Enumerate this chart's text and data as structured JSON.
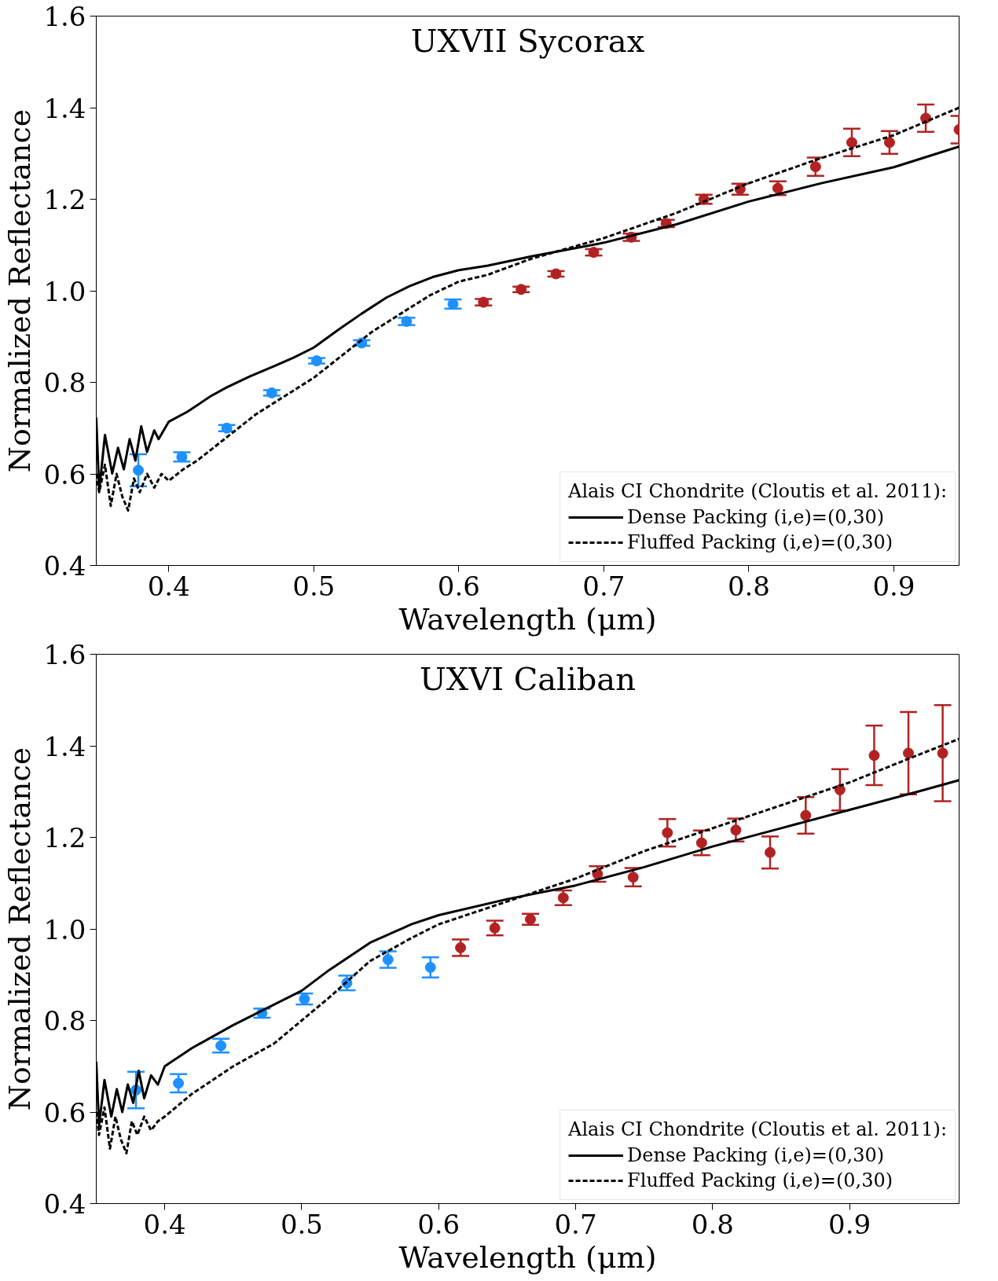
{
  "chart_data": [
    {
      "type": "scatter",
      "title": "UXVII Sycorax",
      "xlabel": "Wavelength (μm)",
      "ylabel": "Normalized Reflectance",
      "legend_title": "Alais CI Chondrite (Cloutis et al. 2011):",
      "legend": "bottom right",
      "grid": false,
      "xlim": [
        0.35,
        0.945
      ],
      "xticks": [
        0.4,
        0.5,
        0.6,
        0.7,
        0.8,
        0.9
      ],
      "ylim": [
        0.4,
        1.6
      ],
      "yticks": [
        0.4,
        0.6,
        0.8,
        {
          "value": 1,
          "label": "1.0"
        },
        1.2,
        1.4,
        1.6
      ],
      "series": [
        {
          "marker": "circle",
          "color": "#1e90ff",
          "x": [
            0.379,
            0.409,
            0.44,
            0.471,
            0.502,
            0.533,
            0.564,
            0.596
          ],
          "values": [
            0.608,
            0.637,
            0.7,
            0.777,
            0.847,
            0.886,
            0.933,
            0.971
          ],
          "errors": [
            0.035,
            0.01,
            0.007,
            0.006,
            0.006,
            0.006,
            0.008,
            0.01
          ]
        },
        {
          "marker": "circle",
          "color": "#b22222",
          "x": [
            0.617,
            0.643,
            0.667,
            0.693,
            0.719,
            0.743,
            0.769,
            0.794,
            0.82,
            0.846,
            0.871,
            0.897,
            0.922,
            0.945
          ],
          "values": [
            0.975,
            1.003,
            1.037,
            1.084,
            1.117,
            1.147,
            1.2,
            1.222,
            1.224,
            1.271,
            1.324,
            1.324,
            1.377,
            1.352
          ],
          "errors": [
            0.007,
            0.006,
            0.006,
            0.007,
            0.008,
            0.008,
            0.01,
            0.012,
            0.015,
            0.02,
            0.03,
            0.025,
            0.03,
            0.03
          ]
        },
        {
          "type": "line",
          "name": "Dense Packing (i,e)=(0,30)",
          "color": "#000000",
          "line_style": "solid",
          "x": [
            0.35,
            0.352,
            0.356,
            0.361,
            0.365,
            0.369,
            0.373,
            0.377,
            0.381,
            0.385,
            0.39,
            0.393,
            0.4,
            0.413,
            0.429,
            0.44,
            0.456,
            0.473,
            0.486,
            0.5,
            0.517,
            0.533,
            0.55,
            0.566,
            0.582,
            0.6,
            0.62,
            0.65,
            0.7,
            0.75,
            0.8,
            0.85,
            0.9,
            0.945
          ],
          "values": [
            0.723,
            0.563,
            0.685,
            0.601,
            0.657,
            0.61,
            0.676,
            0.629,
            0.704,
            0.648,
            0.695,
            0.676,
            0.714,
            0.736,
            0.77,
            0.789,
            0.813,
            0.836,
            0.854,
            0.876,
            0.915,
            0.95,
            0.985,
            1.01,
            1.03,
            1.045,
            1.055,
            1.075,
            1.105,
            1.145,
            1.195,
            1.235,
            1.27,
            1.315
          ]
        },
        {
          "type": "line",
          "name": "Fluffed Packing (i,e)=(0,30)",
          "color": "#000000",
          "line_style": "dashed",
          "x": [
            0.35,
            0.352,
            0.356,
            0.36,
            0.364,
            0.368,
            0.372,
            0.376,
            0.38,
            0.385,
            0.39,
            0.395,
            0.4,
            0.41,
            0.42,
            0.44,
            0.46,
            0.48,
            0.49,
            0.5,
            0.52,
            0.54,
            0.56,
            0.58,
            0.6,
            0.62,
            0.65,
            0.7,
            0.75,
            0.8,
            0.85,
            0.9,
            0.945
          ],
          "values": [
            0.6,
            0.56,
            0.62,
            0.53,
            0.6,
            0.55,
            0.52,
            0.59,
            0.56,
            0.6,
            0.57,
            0.6,
            0.585,
            0.61,
            0.63,
            0.68,
            0.73,
            0.77,
            0.79,
            0.81,
            0.86,
            0.91,
            0.95,
            0.99,
            1.02,
            1.035,
            1.07,
            1.115,
            1.17,
            1.235,
            1.29,
            1.34,
            1.4
          ]
        }
      ]
    },
    {
      "type": "scatter",
      "title": "UXVI Caliban",
      "xlabel": "Wavelength (μm)",
      "ylabel": "Normalized Reflectance",
      "legend_title": "Alais CI Chondrite (Cloutis et al. 2011):",
      "legend": "bottom right",
      "grid": false,
      "xlim": [
        0.35,
        0.98
      ],
      "xticks": [
        0.4,
        0.5,
        0.6,
        0.7,
        0.8,
        0.9
      ],
      "ylim": [
        0.4,
        1.6
      ],
      "yticks": [
        0.4,
        0.6,
        0.8,
        {
          "value": 1,
          "label": "1.0"
        },
        1.2,
        1.4,
        1.6
      ],
      "series": [
        {
          "marker": "circle",
          "color": "#1e90ff",
          "x": [
            0.379,
            0.41,
            0.441,
            0.471,
            0.502,
            0.533,
            0.563,
            0.594
          ],
          "values": [
            0.648,
            0.663,
            0.745,
            0.816,
            0.847,
            0.882,
            0.933,
            0.916
          ],
          "errors": [
            0.04,
            0.02,
            0.015,
            0.01,
            0.012,
            0.016,
            0.018,
            0.022
          ]
        },
        {
          "marker": "circle",
          "color": "#b22222",
          "x": [
            0.616,
            0.641,
            0.667,
            0.691,
            0.716,
            0.742,
            0.767,
            0.792,
            0.817,
            0.842,
            0.868,
            0.893,
            0.918,
            0.943,
            0.968
          ],
          "values": [
            0.959,
            1.002,
            1.021,
            1.068,
            1.12,
            1.113,
            1.21,
            1.188,
            1.216,
            1.167,
            1.248,
            1.304,
            1.379,
            1.384,
            1.384
          ],
          "errors": [
            0.018,
            0.016,
            0.012,
            0.016,
            0.017,
            0.02,
            0.03,
            0.027,
            0.025,
            0.035,
            0.04,
            0.045,
            0.065,
            0.09,
            0.105
          ]
        },
        {
          "type": "line",
          "name": "Dense Packing (i,e)=(0,30)",
          "color": "#000000",
          "line_style": "solid",
          "x": [
            0.35,
            0.352,
            0.356,
            0.361,
            0.365,
            0.369,
            0.373,
            0.377,
            0.381,
            0.385,
            0.39,
            0.395,
            0.4,
            0.42,
            0.45,
            0.47,
            0.5,
            0.52,
            0.55,
            0.58,
            0.6,
            0.65,
            0.7,
            0.75,
            0.8,
            0.85,
            0.9,
            0.95,
            0.98
          ],
          "values": [
            0.71,
            0.57,
            0.67,
            0.59,
            0.65,
            0.6,
            0.66,
            0.62,
            0.69,
            0.63,
            0.68,
            0.66,
            0.7,
            0.74,
            0.79,
            0.82,
            0.865,
            0.91,
            0.97,
            1.01,
            1.03,
            1.065,
            1.095,
            1.135,
            1.18,
            1.22,
            1.26,
            1.3,
            1.325
          ]
        },
        {
          "type": "line",
          "name": "Fluffed Packing (i,e)=(0,30)",
          "color": "#000000",
          "line_style": "dashed",
          "x": [
            0.35,
            0.352,
            0.356,
            0.36,
            0.364,
            0.368,
            0.372,
            0.376,
            0.38,
            0.385,
            0.39,
            0.395,
            0.4,
            0.42,
            0.45,
            0.48,
            0.5,
            0.52,
            0.55,
            0.58,
            0.6,
            0.65,
            0.7,
            0.75,
            0.8,
            0.85,
            0.9,
            0.95,
            0.98
          ],
          "values": [
            0.6,
            0.55,
            0.61,
            0.52,
            0.59,
            0.54,
            0.51,
            0.58,
            0.55,
            0.59,
            0.56,
            0.58,
            0.59,
            0.64,
            0.7,
            0.75,
            0.8,
            0.85,
            0.93,
            0.98,
            1.01,
            1.06,
            1.11,
            1.17,
            1.22,
            1.27,
            1.32,
            1.38,
            1.415
          ]
        }
      ]
    }
  ]
}
